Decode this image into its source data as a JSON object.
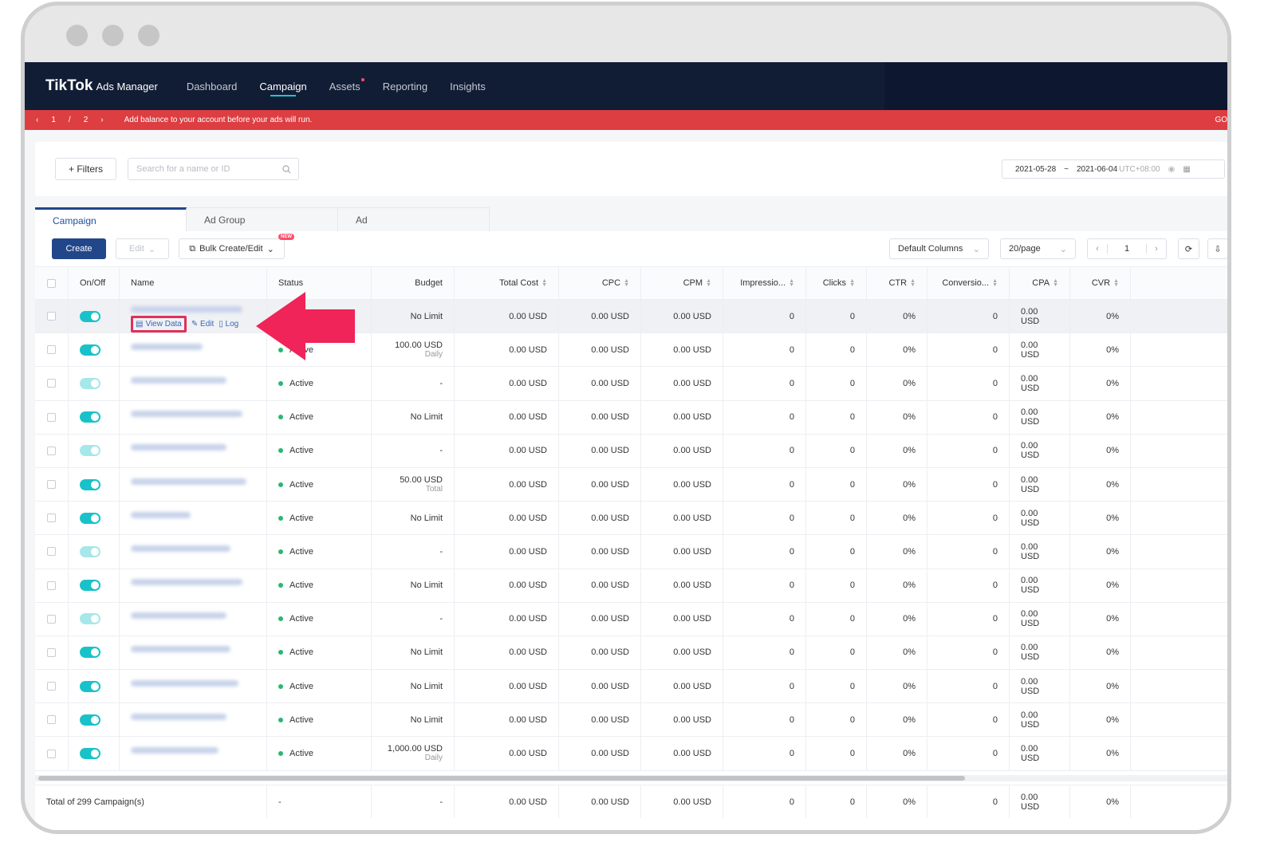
{
  "nav": {
    "logo_main": "TikTok",
    "logo_sub": "Ads Manager",
    "items": [
      {
        "label": "Dashboard",
        "active": false
      },
      {
        "label": "Campaign",
        "active": true
      },
      {
        "label": "Assets",
        "active": false,
        "dot": true
      },
      {
        "label": "Reporting",
        "active": false
      },
      {
        "label": "Insights",
        "active": false
      }
    ]
  },
  "alert": {
    "page": "1",
    "sep": "/",
    "total": "2",
    "message": "Add balance to your account before your ads will run.",
    "cta": "GO"
  },
  "filters": {
    "filters_label": "+ Filters",
    "search_placeholder": "Search for a name or ID",
    "date_start": "2021-05-28",
    "date_sep": "~",
    "date_end": "2021-06-04",
    "timezone": "UTC+08:00"
  },
  "tabs": [
    {
      "label": "Campaign",
      "active": true
    },
    {
      "label": "Ad Group",
      "active": false
    },
    {
      "label": "Ad",
      "active": false
    }
  ],
  "toolbar": {
    "create": "Create",
    "edit": "Edit",
    "bulk": "Bulk Create/Edit",
    "new_badge": "NEW",
    "columns": "Default Columns",
    "per_page": "20/page",
    "page": "1"
  },
  "columns": [
    "On/Off",
    "Name",
    "Status",
    "Budget",
    "Total Cost",
    "CPC",
    "CPM",
    "Impressio...",
    "Clicks",
    "CTR",
    "Conversio...",
    "CPA",
    "CVR"
  ],
  "row_actions": {
    "view_data": "View Data",
    "edit": "Edit",
    "log": "Log"
  },
  "rows": [
    {
      "on": true,
      "status": "",
      "budget": "No Limit",
      "budget_sub": "",
      "total_cost": "0.00 USD",
      "cpc": "0.00 USD",
      "cpm": "0.00 USD",
      "impressions": "0",
      "clicks": "0",
      "ctr": "0%",
      "conversions": "0",
      "cpa": "0.00 USD",
      "cvr": "0%"
    },
    {
      "on": true,
      "status": "Active",
      "budget": "100.00 USD",
      "budget_sub": "Daily",
      "total_cost": "0.00 USD",
      "cpc": "0.00 USD",
      "cpm": "0.00 USD",
      "impressions": "0",
      "clicks": "0",
      "ctr": "0%",
      "conversions": "0",
      "cpa": "0.00 USD",
      "cvr": "0%"
    },
    {
      "on": false,
      "status": "Active",
      "budget": "-",
      "budget_sub": "",
      "total_cost": "0.00 USD",
      "cpc": "0.00 USD",
      "cpm": "0.00 USD",
      "impressions": "0",
      "clicks": "0",
      "ctr": "0%",
      "conversions": "0",
      "cpa": "0.00 USD",
      "cvr": "0%"
    },
    {
      "on": true,
      "status": "Active",
      "budget": "No Limit",
      "budget_sub": "",
      "total_cost": "0.00 USD",
      "cpc": "0.00 USD",
      "cpm": "0.00 USD",
      "impressions": "0",
      "clicks": "0",
      "ctr": "0%",
      "conversions": "0",
      "cpa": "0.00 USD",
      "cvr": "0%"
    },
    {
      "on": false,
      "status": "Active",
      "budget": "-",
      "budget_sub": "",
      "total_cost": "0.00 USD",
      "cpc": "0.00 USD",
      "cpm": "0.00 USD",
      "impressions": "0",
      "clicks": "0",
      "ctr": "0%",
      "conversions": "0",
      "cpa": "0.00 USD",
      "cvr": "0%"
    },
    {
      "on": true,
      "status": "Active",
      "budget": "50.00 USD",
      "budget_sub": "Total",
      "total_cost": "0.00 USD",
      "cpc": "0.00 USD",
      "cpm": "0.00 USD",
      "impressions": "0",
      "clicks": "0",
      "ctr": "0%",
      "conversions": "0",
      "cpa": "0.00 USD",
      "cvr": "0%"
    },
    {
      "on": true,
      "status": "Active",
      "budget": "No Limit",
      "budget_sub": "",
      "total_cost": "0.00 USD",
      "cpc": "0.00 USD",
      "cpm": "0.00 USD",
      "impressions": "0",
      "clicks": "0",
      "ctr": "0%",
      "conversions": "0",
      "cpa": "0.00 USD",
      "cvr": "0%"
    },
    {
      "on": false,
      "status": "Active",
      "budget": "-",
      "budget_sub": "",
      "total_cost": "0.00 USD",
      "cpc": "0.00 USD",
      "cpm": "0.00 USD",
      "impressions": "0",
      "clicks": "0",
      "ctr": "0%",
      "conversions": "0",
      "cpa": "0.00 USD",
      "cvr": "0%"
    },
    {
      "on": true,
      "status": "Active",
      "budget": "No Limit",
      "budget_sub": "",
      "total_cost": "0.00 USD",
      "cpc": "0.00 USD",
      "cpm": "0.00 USD",
      "impressions": "0",
      "clicks": "0",
      "ctr": "0%",
      "conversions": "0",
      "cpa": "0.00 USD",
      "cvr": "0%"
    },
    {
      "on": false,
      "status": "Active",
      "budget": "-",
      "budget_sub": "",
      "total_cost": "0.00 USD",
      "cpc": "0.00 USD",
      "cpm": "0.00 USD",
      "impressions": "0",
      "clicks": "0",
      "ctr": "0%",
      "conversions": "0",
      "cpa": "0.00 USD",
      "cvr": "0%"
    },
    {
      "on": true,
      "status": "Active",
      "budget": "No Limit",
      "budget_sub": "",
      "total_cost": "0.00 USD",
      "cpc": "0.00 USD",
      "cpm": "0.00 USD",
      "impressions": "0",
      "clicks": "0",
      "ctr": "0%",
      "conversions": "0",
      "cpa": "0.00 USD",
      "cvr": "0%"
    },
    {
      "on": true,
      "status": "Active",
      "budget": "No Limit",
      "budget_sub": "",
      "total_cost": "0.00 USD",
      "cpc": "0.00 USD",
      "cpm": "0.00 USD",
      "impressions": "0",
      "clicks": "0",
      "ctr": "0%",
      "conversions": "0",
      "cpa": "0.00 USD",
      "cvr": "0%"
    },
    {
      "on": true,
      "status": "Active",
      "budget": "No Limit",
      "budget_sub": "",
      "total_cost": "0.00 USD",
      "cpc": "0.00 USD",
      "cpm": "0.00 USD",
      "impressions": "0",
      "clicks": "0",
      "ctr": "0%",
      "conversions": "0",
      "cpa": "0.00 USD",
      "cvr": "0%"
    },
    {
      "on": true,
      "status": "Active",
      "budget": "1,000.00 USD",
      "budget_sub": "Daily",
      "total_cost": "0.00 USD",
      "cpc": "0.00 USD",
      "cpm": "0.00 USD",
      "impressions": "0",
      "clicks": "0",
      "ctr": "0%",
      "conversions": "0",
      "cpa": "0.00 USD",
      "cvr": "0%"
    }
  ],
  "footer": {
    "total": "Total of 299 Campaign(s)",
    "status": "-",
    "budget": "-",
    "total_cost": "0.00 USD",
    "cpc": "0.00 USD",
    "cpm": "0.00 USD",
    "impressions": "0",
    "clicks": "0",
    "ctr": "0%",
    "conversions": "0",
    "cpa": "0.00 USD",
    "cvr": "0%"
  },
  "colors": {
    "nav_bg": "#111d35",
    "alert_bg": "#dc3e41",
    "toggle_on": "#19c2c9",
    "primary": "#21478a",
    "highlight": "#e0305a"
  }
}
